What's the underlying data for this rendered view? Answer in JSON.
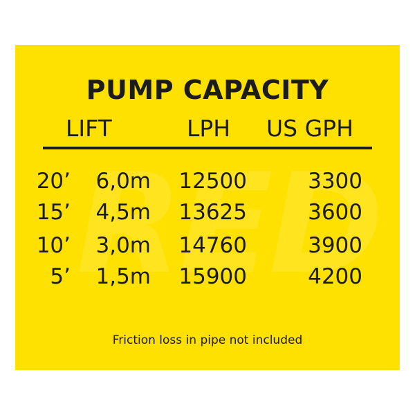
{
  "title": "PUMP CAPACITY",
  "headers": {
    "lift": "LIFT",
    "lph": "LPH",
    "gph": "US GPH"
  },
  "rows": [
    {
      "feet": "20’",
      "meters": "6,0m",
      "lph": "12500",
      "gph": "3300"
    },
    {
      "feet": "15’",
      "meters": "4,5m",
      "lph": "13625",
      "gph": "3600"
    },
    {
      "feet": "10’",
      "meters": "3,0m",
      "lph": "14760",
      "gph": "3900"
    },
    {
      "feet": "5’",
      "meters": "1,5m",
      "lph": "15900",
      "gph": "4200"
    }
  ],
  "footnote": "Friction loss in pipe not included",
  "watermark": "RED",
  "colors": {
    "background": "#ffe100",
    "text": "#1c1c1c"
  }
}
